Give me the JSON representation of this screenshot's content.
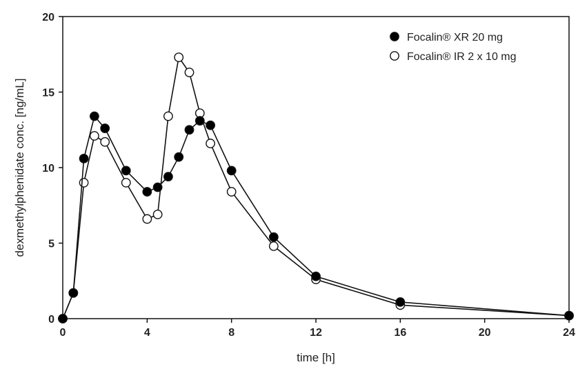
{
  "chart_data": {
    "type": "line",
    "title": "",
    "xlabel": "time [h]",
    "ylabel": "dexmethylphenidate conc. [ng/mL]",
    "xlim": [
      0,
      24
    ],
    "ylim": [
      0,
      20
    ],
    "x_ticks": [
      "0",
      "4",
      "8",
      "12",
      "16",
      "20",
      "24"
    ],
    "y_ticks": [
      "0",
      "5",
      "10",
      "15",
      "20"
    ],
    "grid": false,
    "legend_position": "top-right",
    "series": [
      {
        "name": "Focalin® XR 20 mg",
        "marker": "filled-circle",
        "color": "#000000",
        "x": [
          0,
          0.5,
          1,
          1.5,
          2,
          3,
          4,
          4.5,
          5,
          5.5,
          6,
          6.5,
          7,
          8,
          10,
          12,
          16,
          24
        ],
        "y": [
          0,
          1.7,
          10.6,
          13.4,
          12.6,
          9.8,
          8.4,
          8.7,
          9.4,
          10.7,
          12.5,
          13.1,
          12.8,
          9.8,
          5.4,
          2.8,
          1.1,
          0.2
        ]
      },
      {
        "name": "Focalin® IR 2 x 10 mg",
        "marker": "open-circle",
        "color": "#000000",
        "x": [
          0,
          0.5,
          1,
          1.5,
          2,
          3,
          4,
          4.5,
          5,
          5.5,
          6,
          6.5,
          7,
          8,
          10,
          12,
          16,
          24
        ],
        "y": [
          0,
          1.7,
          9.0,
          12.1,
          11.7,
          9.0,
          6.6,
          6.9,
          13.4,
          17.3,
          16.3,
          13.6,
          11.6,
          8.4,
          4.8,
          2.6,
          0.9,
          0.2
        ]
      }
    ]
  }
}
